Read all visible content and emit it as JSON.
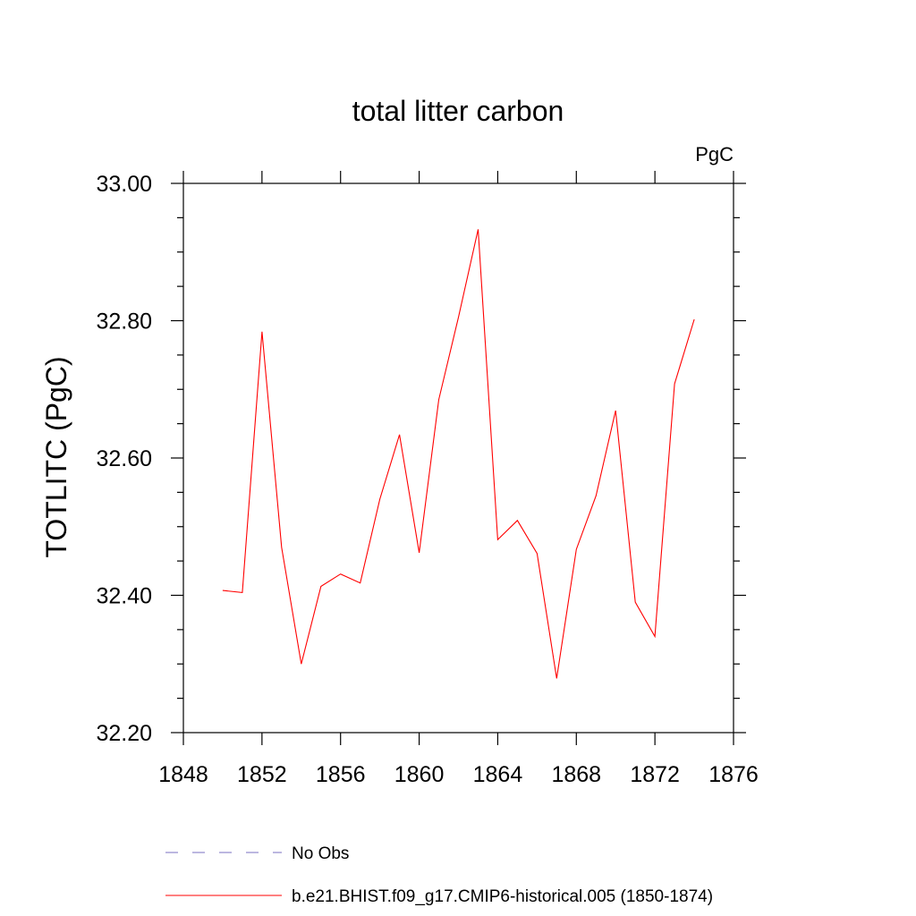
{
  "chart_data": {
    "type": "line",
    "title": "total litter carbon",
    "units_label": "PgC",
    "ylabel": "TOTLITC  (PgC)",
    "xlabel": "",
    "xlim": [
      1848,
      1876
    ],
    "ylim": [
      32.2,
      33.0
    ],
    "xticks": [
      1848,
      1852,
      1856,
      1860,
      1864,
      1868,
      1872,
      1876
    ],
    "xtick_labels": [
      "1848",
      "1852",
      "1856",
      "1860",
      "1864",
      "1868",
      "1872",
      "1876"
    ],
    "yticks": [
      32.2,
      32.4,
      32.6,
      32.8,
      33.0
    ],
    "ytick_labels": [
      "32.20",
      "32.40",
      "32.60",
      "32.80",
      "33.00"
    ],
    "grid": false,
    "legend_position": "bottom",
    "series": [
      {
        "name": "b.e21.BHIST.f09_g17.CMIP6-historical.005 (1850-1874)",
        "color": "#ff0000",
        "style": "solid",
        "x": [
          1850,
          1851,
          1852,
          1853,
          1854,
          1855,
          1856,
          1857,
          1858,
          1859,
          1860,
          1861,
          1862,
          1863,
          1864,
          1865,
          1866,
          1867,
          1868,
          1869,
          1870,
          1871,
          1872,
          1873,
          1874
        ],
        "y": [
          32.407,
          32.404,
          32.784,
          32.47,
          32.3,
          32.413,
          32.431,
          32.418,
          32.54,
          32.634,
          32.462,
          32.685,
          32.805,
          32.933,
          32.481,
          32.509,
          32.461,
          32.279,
          32.467,
          32.545,
          32.669,
          32.39,
          32.34,
          32.708,
          32.802
        ]
      }
    ],
    "legend": [
      {
        "label": "No Obs",
        "color": "#7a6fc0",
        "style": "dashed"
      },
      {
        "label": "b.e21.BHIST.f09_g17.CMIP6-historical.005 (1850-1874)",
        "color": "#ff0000",
        "style": "solid"
      }
    ]
  }
}
